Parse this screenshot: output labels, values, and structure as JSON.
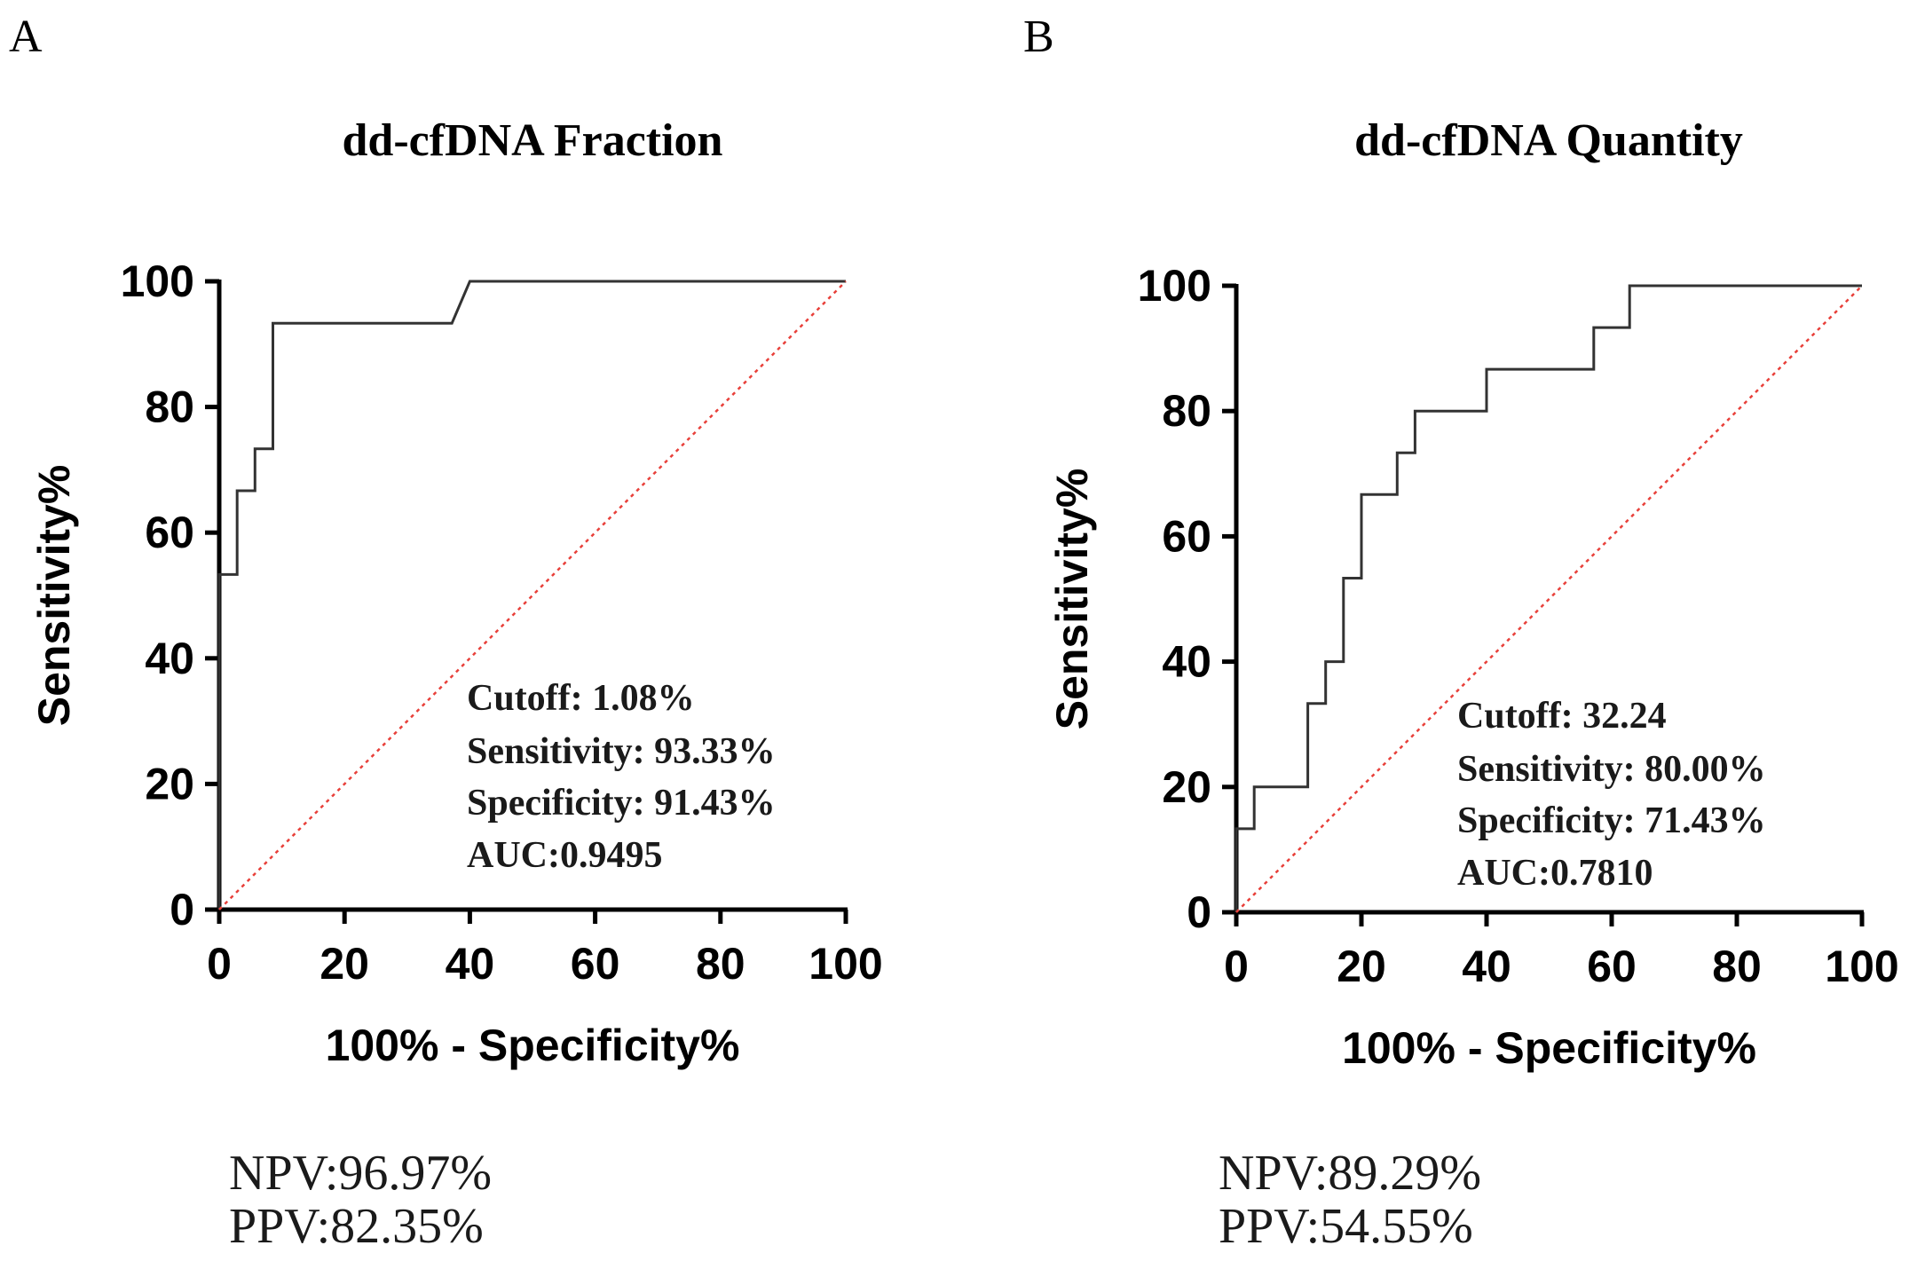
{
  "chart_data": [
    {
      "panel": "A",
      "type": "line",
      "title": "dd-cfDNA Fraction",
      "xlabel": "100% - Specificity%",
      "ylabel": "Sensitivity%",
      "xlim": [
        0,
        100
      ],
      "ylim": [
        0,
        100
      ],
      "xticks": [
        "0",
        "20",
        "40",
        "60",
        "80",
        "100"
      ],
      "yticks": [
        "0",
        "20",
        "40",
        "60",
        "80",
        "100"
      ],
      "series": [
        {
          "name": "ROC",
          "color": "#333333",
          "x": [
            0,
            0,
            2.86,
            2.86,
            5.71,
            5.71,
            8.57,
            8.57,
            37.14,
            40,
            100
          ],
          "y": [
            0,
            53.33,
            53.33,
            66.67,
            66.67,
            73.33,
            73.33,
            93.33,
            93.33,
            100,
            100
          ]
        },
        {
          "name": "Reference",
          "color": "#e8403a",
          "style": "dotted",
          "x": [
            0,
            100
          ],
          "y": [
            0,
            100
          ]
        }
      ],
      "annotations": [
        "Cutoff:  1.08%",
        "Sensitivity:  93.33%",
        "Specificity:  91.43%",
        "AUC:0.9495"
      ],
      "footer": [
        "NPV:96.97%",
        "PPV:82.35%"
      ]
    },
    {
      "panel": "B",
      "type": "line",
      "title": "dd-cfDNA Quantity",
      "xlabel": "100% - Specificity%",
      "ylabel": "Sensitivity%",
      "xlim": [
        0,
        100
      ],
      "ylim": [
        0,
        100
      ],
      "xticks": [
        "0",
        "20",
        "40",
        "60",
        "80",
        "100"
      ],
      "yticks": [
        "0",
        "20",
        "40",
        "60",
        "80",
        "100"
      ],
      "series": [
        {
          "name": "ROC",
          "color": "#333333",
          "x": [
            0,
            0,
            2.86,
            2.86,
            11.43,
            11.43,
            14.29,
            14.29,
            17.14,
            17.14,
            20,
            20,
            25.71,
            25.71,
            28.57,
            28.57,
            40,
            40,
            57.14,
            57.14,
            62.86,
            62.86,
            100
          ],
          "y": [
            0,
            13.33,
            13.33,
            20,
            20,
            33.33,
            33.33,
            40,
            40,
            53.33,
            53.33,
            66.67,
            66.67,
            73.33,
            73.33,
            80,
            80,
            86.67,
            86.67,
            93.33,
            93.33,
            100,
            100
          ]
        },
        {
          "name": "Reference",
          "color": "#e8403a",
          "style": "dotted",
          "x": [
            0,
            100
          ],
          "y": [
            0,
            100
          ]
        }
      ],
      "annotations": [
        "Cutoff:  32.24",
        "Sensitivity:  80.00%",
        "Specificity:  71.43%",
        "AUC:0.7810"
      ],
      "footer": [
        "NPV:89.29%",
        "PPV:54.55%"
      ]
    }
  ]
}
